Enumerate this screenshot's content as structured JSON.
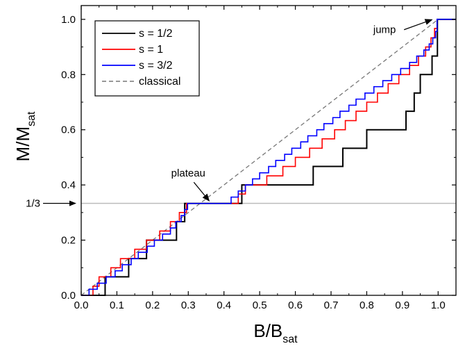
{
  "chart_data": {
    "type": "line",
    "xlabel": {
      "main": "B/B",
      "sub": "sat"
    },
    "ylabel": {
      "main": "M/M",
      "sub": "sat"
    },
    "xlim": [
      0.0,
      1.05
    ],
    "ylim": [
      0.0,
      1.05
    ],
    "xticks": [
      0.0,
      0.1,
      0.2,
      0.3,
      0.4,
      0.5,
      0.6,
      0.7,
      0.8,
      0.9,
      1.0
    ],
    "xtick_labels": [
      "0.0",
      "0.1",
      "0.2",
      "0.3",
      "0.4",
      "0.5",
      "0.6",
      "0.7",
      "0.8",
      "0.9",
      "1.0"
    ],
    "yticks": [
      0.0,
      0.2,
      0.4,
      0.6,
      0.8,
      1.0
    ],
    "ytick_labels": [
      "0.0",
      "0.2",
      "0.4",
      "0.6",
      "0.8",
      "1.0"
    ],
    "legend_position": "top-left",
    "series": [
      {
        "name": "s = 1/2",
        "color": "#000000",
        "style": "solid",
        "points": [
          [
            0,
            0
          ],
          [
            0.067,
            0
          ],
          [
            0.067,
            0.067
          ],
          [
            0.133,
            0.067
          ],
          [
            0.133,
            0.133
          ],
          [
            0.183,
            0.133
          ],
          [
            0.183,
            0.2
          ],
          [
            0.233,
            0.2
          ],
          [
            0.233,
            0.2
          ],
          [
            0.267,
            0.2
          ],
          [
            0.267,
            0.267
          ],
          [
            0.29,
            0.267
          ],
          [
            0.29,
            0.333
          ],
          [
            0.45,
            0.333
          ],
          [
            0.45,
            0.4
          ],
          [
            0.65,
            0.4
          ],
          [
            0.65,
            0.467
          ],
          [
            0.733,
            0.467
          ],
          [
            0.733,
            0.533
          ],
          [
            0.8,
            0.533
          ],
          [
            0.8,
            0.6
          ],
          [
            0.91,
            0.6
          ],
          [
            0.91,
            0.667
          ],
          [
            0.933,
            0.667
          ],
          [
            0.933,
            0.733
          ],
          [
            0.95,
            0.733
          ],
          [
            0.95,
            0.8
          ],
          [
            0.983,
            0.8
          ],
          [
            0.983,
            0.867
          ],
          [
            0.998,
            0.867
          ],
          [
            0.998,
            1.0
          ],
          [
            1.05,
            1.0
          ]
        ]
      },
      {
        "name": "s = 1",
        "color": "#ff0000",
        "style": "solid",
        "points": [
          [
            0,
            0
          ],
          [
            0.033,
            0
          ],
          [
            0.033,
            0.033
          ],
          [
            0.05,
            0.033
          ],
          [
            0.05,
            0.067
          ],
          [
            0.083,
            0.067
          ],
          [
            0.083,
            0.1
          ],
          [
            0.11,
            0.1
          ],
          [
            0.11,
            0.133
          ],
          [
            0.15,
            0.133
          ],
          [
            0.15,
            0.167
          ],
          [
            0.183,
            0.167
          ],
          [
            0.183,
            0.2
          ],
          [
            0.22,
            0.2
          ],
          [
            0.22,
            0.233
          ],
          [
            0.25,
            0.233
          ],
          [
            0.25,
            0.267
          ],
          [
            0.275,
            0.267
          ],
          [
            0.275,
            0.3
          ],
          [
            0.295,
            0.3
          ],
          [
            0.295,
            0.333
          ],
          [
            0.44,
            0.333
          ],
          [
            0.44,
            0.367
          ],
          [
            0.46,
            0.367
          ],
          [
            0.46,
            0.4
          ],
          [
            0.52,
            0.4
          ],
          [
            0.52,
            0.433
          ],
          [
            0.565,
            0.433
          ],
          [
            0.565,
            0.467
          ],
          [
            0.6,
            0.467
          ],
          [
            0.6,
            0.5
          ],
          [
            0.64,
            0.5
          ],
          [
            0.64,
            0.533
          ],
          [
            0.675,
            0.533
          ],
          [
            0.675,
            0.567
          ],
          [
            0.71,
            0.567
          ],
          [
            0.71,
            0.6
          ],
          [
            0.74,
            0.6
          ],
          [
            0.74,
            0.633
          ],
          [
            0.77,
            0.633
          ],
          [
            0.77,
            0.667
          ],
          [
            0.8,
            0.667
          ],
          [
            0.8,
            0.7
          ],
          [
            0.83,
            0.7
          ],
          [
            0.83,
            0.733
          ],
          [
            0.86,
            0.733
          ],
          [
            0.86,
            0.767
          ],
          [
            0.89,
            0.767
          ],
          [
            0.89,
            0.8
          ],
          [
            0.92,
            0.8
          ],
          [
            0.92,
            0.833
          ],
          [
            0.945,
            0.833
          ],
          [
            0.945,
            0.867
          ],
          [
            0.965,
            0.867
          ],
          [
            0.965,
            0.9
          ],
          [
            0.98,
            0.9
          ],
          [
            0.98,
            0.933
          ],
          [
            0.99,
            0.933
          ],
          [
            0.99,
            0.967
          ],
          [
            0.997,
            0.967
          ],
          [
            0.997,
            1.0
          ],
          [
            1.05,
            1.0
          ]
        ]
      },
      {
        "name": "s = 3/2",
        "color": "#0000ff",
        "style": "solid",
        "points": [
          [
            0,
            0
          ],
          [
            0.022,
            0
          ],
          [
            0.022,
            0.022
          ],
          [
            0.045,
            0.022
          ],
          [
            0.045,
            0.044
          ],
          [
            0.07,
            0.044
          ],
          [
            0.07,
            0.067
          ],
          [
            0.095,
            0.067
          ],
          [
            0.095,
            0.089
          ],
          [
            0.115,
            0.089
          ],
          [
            0.115,
            0.111
          ],
          [
            0.14,
            0.111
          ],
          [
            0.14,
            0.133
          ],
          [
            0.16,
            0.133
          ],
          [
            0.16,
            0.156
          ],
          [
            0.185,
            0.156
          ],
          [
            0.185,
            0.178
          ],
          [
            0.205,
            0.178
          ],
          [
            0.205,
            0.2
          ],
          [
            0.228,
            0.2
          ],
          [
            0.228,
            0.222
          ],
          [
            0.25,
            0.222
          ],
          [
            0.25,
            0.244
          ],
          [
            0.265,
            0.244
          ],
          [
            0.265,
            0.267
          ],
          [
            0.28,
            0.267
          ],
          [
            0.28,
            0.289
          ],
          [
            0.29,
            0.289
          ],
          [
            0.29,
            0.311
          ],
          [
            0.298,
            0.311
          ],
          [
            0.298,
            0.333
          ],
          [
            0.42,
            0.333
          ],
          [
            0.42,
            0.356
          ],
          [
            0.44,
            0.356
          ],
          [
            0.44,
            0.378
          ],
          [
            0.46,
            0.378
          ],
          [
            0.46,
            0.4
          ],
          [
            0.48,
            0.4
          ],
          [
            0.48,
            0.422
          ],
          [
            0.5,
            0.422
          ],
          [
            0.5,
            0.444
          ],
          [
            0.525,
            0.444
          ],
          [
            0.525,
            0.467
          ],
          [
            0.545,
            0.467
          ],
          [
            0.545,
            0.489
          ],
          [
            0.57,
            0.489
          ],
          [
            0.57,
            0.511
          ],
          [
            0.59,
            0.511
          ],
          [
            0.59,
            0.533
          ],
          [
            0.615,
            0.533
          ],
          [
            0.615,
            0.556
          ],
          [
            0.635,
            0.556
          ],
          [
            0.635,
            0.578
          ],
          [
            0.66,
            0.578
          ],
          [
            0.66,
            0.6
          ],
          [
            0.68,
            0.6
          ],
          [
            0.68,
            0.622
          ],
          [
            0.705,
            0.622
          ],
          [
            0.705,
            0.644
          ],
          [
            0.725,
            0.644
          ],
          [
            0.725,
            0.667
          ],
          [
            0.75,
            0.667
          ],
          [
            0.75,
            0.689
          ],
          [
            0.77,
            0.689
          ],
          [
            0.77,
            0.711
          ],
          [
            0.795,
            0.711
          ],
          [
            0.795,
            0.733
          ],
          [
            0.82,
            0.733
          ],
          [
            0.82,
            0.756
          ],
          [
            0.845,
            0.756
          ],
          [
            0.845,
            0.778
          ],
          [
            0.87,
            0.778
          ],
          [
            0.87,
            0.8
          ],
          [
            0.895,
            0.8
          ],
          [
            0.895,
            0.822
          ],
          [
            0.92,
            0.822
          ],
          [
            0.92,
            0.844
          ],
          [
            0.94,
            0.844
          ],
          [
            0.94,
            0.867
          ],
          [
            0.96,
            0.867
          ],
          [
            0.96,
            0.889
          ],
          [
            0.975,
            0.889
          ],
          [
            0.975,
            0.911
          ],
          [
            0.985,
            0.911
          ],
          [
            0.985,
            0.933
          ],
          [
            0.993,
            0.933
          ],
          [
            0.993,
            0.956
          ],
          [
            0.997,
            0.956
          ],
          [
            0.997,
            1.0
          ],
          [
            1.05,
            1.0
          ]
        ]
      },
      {
        "name": "classical",
        "color": "#777777",
        "style": "dashed",
        "points": [
          [
            0,
            0
          ],
          [
            1.0,
            1.0
          ]
        ]
      }
    ],
    "reference_lines": [
      {
        "axis": "y",
        "value": 0.3333,
        "color": "#bbbbbb",
        "label": "1/3"
      }
    ],
    "annotations": [
      {
        "text": "plateau",
        "text_at": [
          0.3,
          0.43
        ],
        "arrow_to": [
          0.36,
          0.34
        ]
      },
      {
        "text": "jump",
        "text_at": [
          0.85,
          0.95
        ],
        "arrow_to": [
          0.985,
          1.0
        ]
      }
    ]
  }
}
